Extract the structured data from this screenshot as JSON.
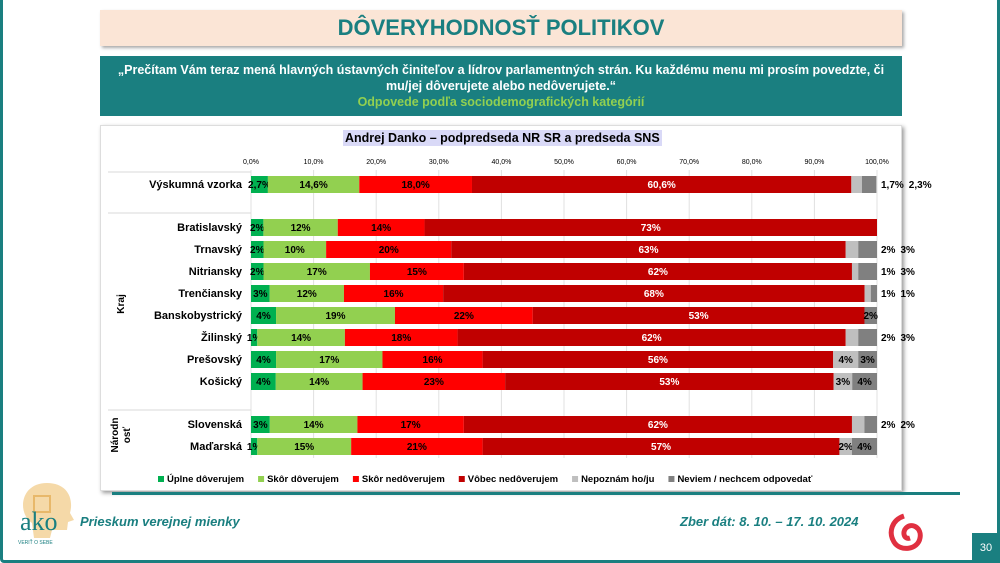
{
  "title": "DÔVERYHODNOSŤ POLITIKOV",
  "question": "„Prečítam Vám teraz mená hlavných ústavných činiteľov a lídrov parlamentných strán. Ku každému menu mi prosím povedzte, či mu/jej dôverujete alebo nedôverujete.“",
  "question_sub": "Odpovede podľa sociodemografických kategórií",
  "footer": {
    "left": "Prieskum verejnej mienky",
    "right": "Zber dát: 8. 10. – 17. 10. 2024",
    "page": "30",
    "logo_text": "ako",
    "logo_tagline": "VERIŤ O SEBE"
  },
  "chart_data": {
    "type": "bar",
    "orientation": "horizontal",
    "stacked": true,
    "title": "Andrej Danko – podpredseda NR SR a predseda SNS",
    "xlim": [
      0,
      100
    ],
    "x_ticks": [
      "0,0%",
      "10,0%",
      "20,0%",
      "30,0%",
      "40,0%",
      "50,0%",
      "60,0%",
      "70,0%",
      "80,0%",
      "90,0%",
      "100,0%"
    ],
    "grid": true,
    "legend_position": "bottom",
    "series": [
      {
        "name": "Úplne dôverujem",
        "color": "#00b050"
      },
      {
        "name": "Skôr dôverujem",
        "color": "#92d050"
      },
      {
        "name": "Skôr nedôverujem",
        "color": "#ff0000"
      },
      {
        "name": "Vôbec nedôverujem",
        "color": "#c00000"
      },
      {
        "name": "Nepoznám ho/ju",
        "color": "#bfbfbf"
      },
      {
        "name": "Neviem / nechcem odpovedať",
        "color": "#808080"
      }
    ],
    "groups": [
      {
        "label": "",
        "rows": [
          {
            "category": "Výskumná vzorka",
            "values": [
              2.7,
              14.6,
              18.0,
              60.6,
              1.7,
              2.3
            ],
            "decimals": 1
          }
        ]
      },
      {
        "label": "Kraj",
        "rows": [
          {
            "category": "Bratislavský",
            "values": [
              2,
              12,
              14,
              73,
              0,
              0
            ]
          },
          {
            "category": "Trnavský",
            "values": [
              2,
              10,
              20,
              63,
              2,
              3
            ]
          },
          {
            "category": "Nitriansky",
            "values": [
              2,
              17,
              15,
              62,
              1,
              3
            ]
          },
          {
            "category": "Trenčiansky",
            "values": [
              3,
              12,
              16,
              68,
              1,
              1
            ]
          },
          {
            "category": "Banskobystrický",
            "values": [
              4,
              19,
              22,
              53,
              0,
              2
            ]
          },
          {
            "category": "Žilinský",
            "values": [
              1,
              14,
              18,
              62,
              2,
              3
            ]
          },
          {
            "category": "Prešovský",
            "values": [
              4,
              17,
              16,
              56,
              4,
              3
            ]
          },
          {
            "category": "Košický",
            "values": [
              4,
              14,
              23,
              53,
              3,
              4
            ]
          }
        ]
      },
      {
        "label": "Národnosť",
        "rows": [
          {
            "category": "Slovenská",
            "values": [
              3,
              14,
              17,
              62,
              2,
              2
            ]
          },
          {
            "category": "Maďarská",
            "values": [
              1,
              15,
              21,
              57,
              2,
              4
            ]
          }
        ]
      }
    ]
  }
}
